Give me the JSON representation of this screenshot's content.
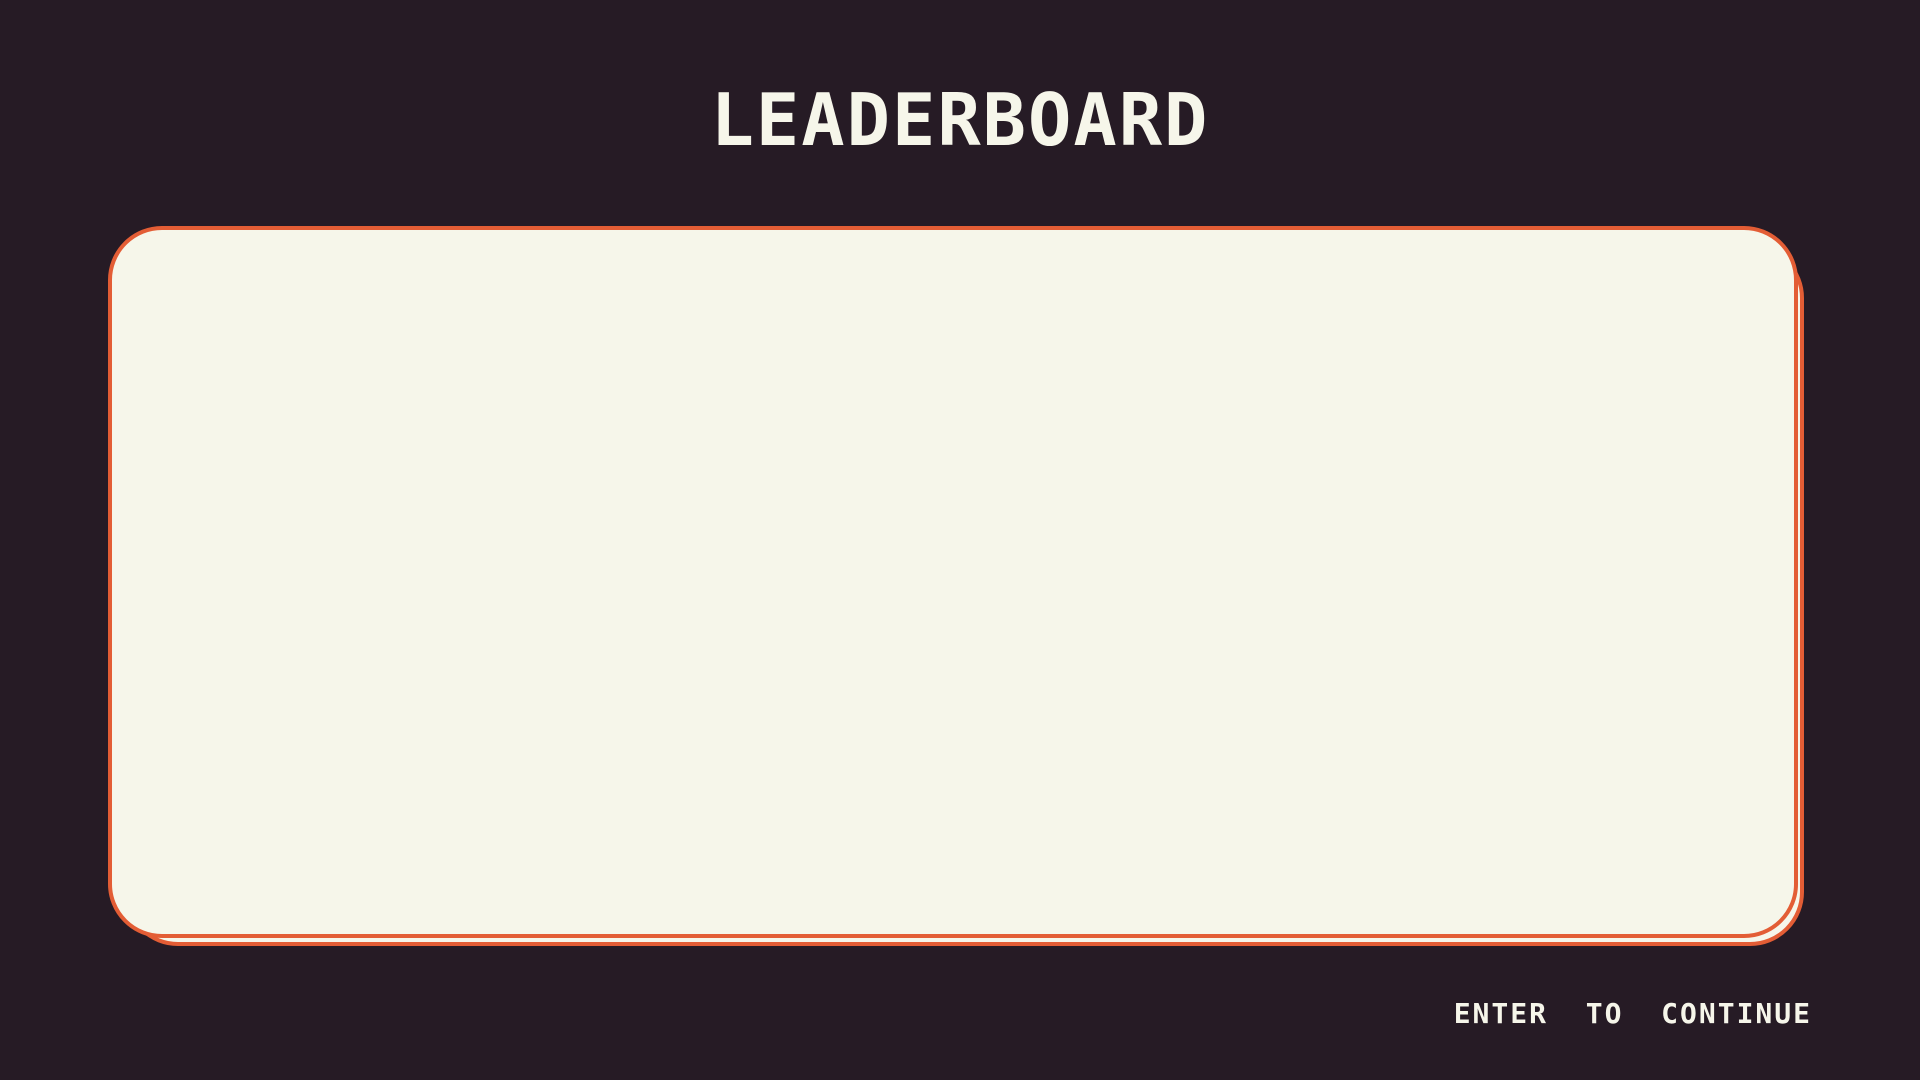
{
  "screen": {
    "title": "LEADERBOARD",
    "continue_hint": "ENTER  TO  CONTINUE"
  },
  "leaderboard": {
    "entries": []
  },
  "colors": {
    "background": "#261b25",
    "panel": "#f6f6ea",
    "panel_border": "#e35d35",
    "text": "#f6f6ea"
  }
}
